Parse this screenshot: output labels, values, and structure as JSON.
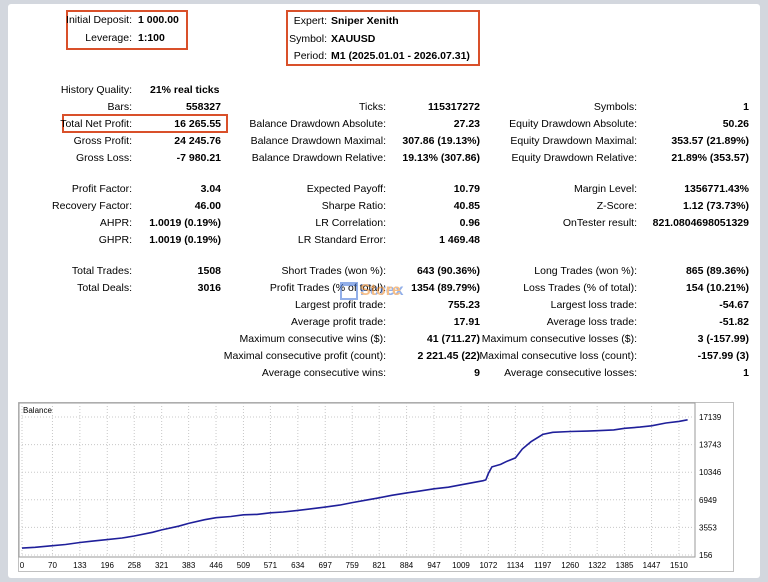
{
  "top_left": {
    "initial_deposit_label": "Initial Deposit:",
    "initial_deposit_value": "1 000.00",
    "leverage_label": "Leverage:",
    "leverage_value": "1:100"
  },
  "top_right": {
    "expert_label": "Expert:",
    "expert_value": "Sniper Xenith",
    "symbol_label": "Symbol:",
    "symbol_value": "XAUUSD",
    "period_label": "Period:",
    "period_value": "M1 (2025.01.01 - 2026.07.31)"
  },
  "col1": {
    "history_quality_label": "History Quality:",
    "history_quality_value": "21% real ticks",
    "bars_label": "Bars:",
    "bars_value": "558327",
    "total_net_profit_label": "Total Net Profit:",
    "total_net_profit_value": "16 265.55",
    "gross_profit_label": "Gross Profit:",
    "gross_profit_value": "24 245.76",
    "gross_loss_label": "Gross Loss:",
    "gross_loss_value": "-7 980.21",
    "profit_factor_label": "Profit Factor:",
    "profit_factor_value": "3.04",
    "recovery_factor_label": "Recovery Factor:",
    "recovery_factor_value": "46.00",
    "ahpr_label": "AHPR:",
    "ahpr_value": "1.0019 (0.19%)",
    "ghpr_label": "GHPR:",
    "ghpr_value": "1.0019 (0.19%)",
    "total_trades_label": "Total Trades:",
    "total_trades_value": "1508",
    "total_deals_label": "Total Deals:",
    "total_deals_value": "3016"
  },
  "col2": {
    "ticks_label": "Ticks:",
    "ticks_value": "115317272",
    "bal_dd_abs_label": "Balance Drawdown Absolute:",
    "bal_dd_abs_value": "27.23",
    "bal_dd_max_label": "Balance Drawdown Maximal:",
    "bal_dd_max_value": "307.86 (19.13%)",
    "bal_dd_rel_label": "Balance Drawdown Relative:",
    "bal_dd_rel_value": "19.13% (307.86)",
    "expected_payoff_label": "Expected Payoff:",
    "expected_payoff_value": "10.79",
    "sharpe_label": "Sharpe Ratio:",
    "sharpe_value": "40.85",
    "lr_corr_label": "LR Correlation:",
    "lr_corr_value": "0.96",
    "lr_err_label": "LR Standard Error:",
    "lr_err_value": "1 469.48",
    "short_trades_label": "Short Trades (won %):",
    "short_trades_value": "643 (90.36%)",
    "profit_trades_label": "Profit Trades (% of total):",
    "profit_trades_value": "1354 (89.79%)",
    "largest_profit_label": "Largest profit trade:",
    "largest_profit_value": "755.23",
    "avg_profit_label": "Average profit trade:",
    "avg_profit_value": "17.91",
    "max_consec_wins_label": "Maximum consecutive wins ($):",
    "max_consec_wins_value": "41 (711.27)",
    "maximal_consec_profit_label": "Maximal consecutive profit (count):",
    "maximal_consec_profit_value": "2 221.45 (22)",
    "avg_consec_wins_label": "Average consecutive wins:",
    "avg_consec_wins_value": "9"
  },
  "col3": {
    "symbols_label": "Symbols:",
    "symbols_value": "1",
    "eq_dd_abs_label": "Equity Drawdown Absolute:",
    "eq_dd_abs_value": "50.26",
    "eq_dd_max_label": "Equity Drawdown Maximal:",
    "eq_dd_max_value": "353.57 (21.89%)",
    "eq_dd_rel_label": "Equity Drawdown Relative:",
    "eq_dd_rel_value": "21.89% (353.57)",
    "margin_level_label": "Margin Level:",
    "margin_level_value": "1356771.43%",
    "zscore_label": "Z-Score:",
    "zscore_value": "1.12 (73.73%)",
    "ontester_label": "OnTester result:",
    "ontester_value": "821.0804698051329",
    "long_trades_label": "Long Trades (won %):",
    "long_trades_value": "865 (89.36%)",
    "loss_trades_label": "Loss Trades (% of total):",
    "loss_trades_value": "154 (10.21%)",
    "largest_loss_label": "Largest loss trade:",
    "largest_loss_value": "-54.67",
    "avg_loss_label": "Average loss trade:",
    "avg_loss_value": "-51.82",
    "max_consec_losses_label": "Maximum consecutive losses ($):",
    "max_consec_losses_value": "3 (-157.99)",
    "maximal_consec_loss_label": "Maximal consecutive loss (count):",
    "maximal_consec_loss_value": "-157.99 (3)",
    "avg_consec_losses_label": "Average consecutive losses:",
    "avg_consec_losses_value": "1"
  },
  "watermark": {
    "part1": "Forex",
    "part2": "Store",
    "color1": "#3a6fd8",
    "color2": "#f08a24"
  },
  "colors": {
    "highlight_border": "#d9502a",
    "balance_line": "#1f1f9a"
  },
  "chart_data": {
    "type": "line",
    "title": "Balance",
    "x_ticks": [
      "0",
      "70",
      "133",
      "196",
      "258",
      "321",
      "383",
      "446",
      "509",
      "571",
      "634",
      "697",
      "759",
      "821",
      "884",
      "947",
      "1009",
      "1072",
      "1134",
      "1197",
      "1260",
      "1322",
      "1385",
      "1447",
      "1510"
    ],
    "y_ticks": [
      "17139",
      "13743",
      "10346",
      "6949",
      "3553",
      "156"
    ],
    "ylim": [
      156,
      17139
    ],
    "xlim": [
      0,
      1540
    ],
    "series": [
      {
        "values_x": [
          0,
          30,
          70,
          100,
          133,
          160,
          196,
          230,
          258,
          300,
          321,
          360,
          383,
          420,
          446,
          480,
          509,
          540,
          571,
          600,
          634,
          660,
          697,
          730,
          759,
          790,
          821,
          850,
          884,
          910,
          947,
          980,
          1009,
          1040,
          1060,
          1066,
          1072,
          1080,
          1100,
          1115,
          1134,
          1150,
          1170,
          1197,
          1220,
          1260,
          1300,
          1322,
          1360,
          1385,
          1420,
          1447,
          1480,
          1510,
          1530
        ],
        "values_y": [
          1000,
          1100,
          1300,
          1450,
          1700,
          1850,
          2050,
          2250,
          2500,
          2950,
          3250,
          3700,
          4050,
          4500,
          4750,
          4900,
          5100,
          5150,
          5350,
          5450,
          5650,
          5800,
          6050,
          6300,
          6600,
          6900,
          7200,
          7500,
          7800,
          8000,
          8300,
          8500,
          8800,
          9100,
          9300,
          9400,
          10200,
          11000,
          11300,
          11700,
          12100,
          13200,
          14100,
          15000,
          15250,
          15350,
          15400,
          15450,
          15550,
          15750,
          15900,
          16050,
          16400,
          16600,
          16800
        ]
      }
    ]
  }
}
